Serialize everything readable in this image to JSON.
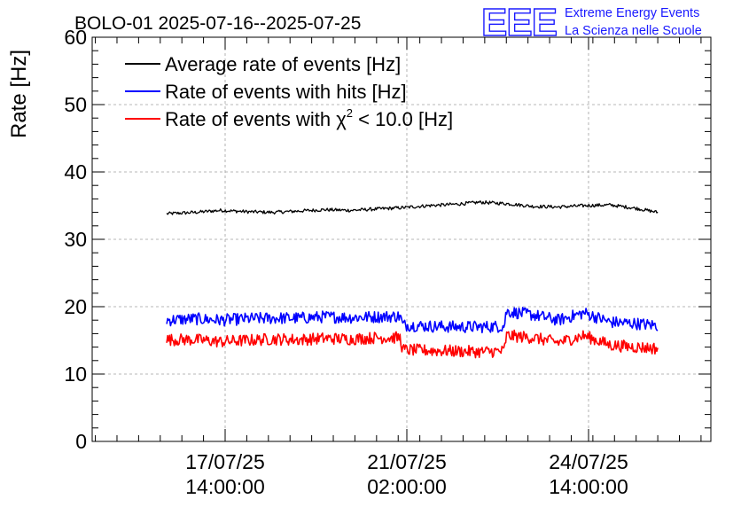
{
  "chart_data": {
    "type": "line",
    "title": "BOLO-01 2025-07-16--2025-07-25",
    "xlabel": "",
    "ylabel": "Rate [Hz]",
    "ylim": [
      0,
      60
    ],
    "yticks": [
      0,
      10,
      20,
      30,
      40,
      50,
      60
    ],
    "xtick_labels": [
      {
        "date": "17/07/25",
        "time": "14:00:00"
      },
      {
        "date": "21/07/25",
        "time": "02:00:00"
      },
      {
        "date": "24/07/25",
        "time": "14:00:00"
      }
    ],
    "grid": true,
    "legend_position": "top-left",
    "legend": [
      {
        "label": "Average rate of events [Hz]",
        "color": "#000000"
      },
      {
        "label": "Rate of events with hits [Hz]",
        "color": "#0000ff"
      },
      {
        "label_prefix": "Rate of events with ",
        "label_symbol": "χ",
        "label_sup": "2",
        "label_suffix": " < 10.0 [Hz]",
        "color": "#ff0000"
      }
    ],
    "series": [
      {
        "color": "#000000",
        "noise": 0.25,
        "x": [
          "2025-07-16 11:00",
          "2025-07-17 00:00",
          "2025-07-17 12:00",
          "2025-07-18 00:00",
          "2025-07-18 12:00",
          "2025-07-19 00:00",
          "2025-07-19 12:00",
          "2025-07-20 00:00",
          "2025-07-20 12:00",
          "2025-07-21 00:00",
          "2025-07-21 12:00",
          "2025-07-22 00:00",
          "2025-07-22 12:00",
          "2025-07-23 00:00",
          "2025-07-23 12:00",
          "2025-07-24 00:00",
          "2025-07-24 12:00",
          "2025-07-25 00:00",
          "2025-07-25 12:00",
          "2025-07-25 22:00"
        ],
        "values": [
          33.8,
          34.0,
          34.3,
          34.1,
          34.0,
          34.2,
          34.4,
          34.3,
          34.5,
          34.7,
          35.0,
          35.2,
          35.5,
          35.3,
          34.9,
          34.8,
          35.0,
          35.1,
          34.6,
          34.0
        ]
      },
      {
        "color": "#0000ff",
        "noise": 0.9,
        "x": [
          "2025-07-16 11:00",
          "2025-07-17 00:00",
          "2025-07-17 12:00",
          "2025-07-18 00:00",
          "2025-07-18 12:00",
          "2025-07-19 00:00",
          "2025-07-19 12:00",
          "2025-07-20 00:00",
          "2025-07-20 12:00",
          "2025-07-20 23:00",
          "2025-07-21 00:00",
          "2025-07-21 12:00",
          "2025-07-22 00:00",
          "2025-07-22 12:00",
          "2025-07-22 23:00",
          "2025-07-23 00:00",
          "2025-07-23 12:00",
          "2025-07-24 00:00",
          "2025-07-24 12:00",
          "2025-07-25 00:00",
          "2025-07-25 12:00",
          "2025-07-25 22:00"
        ],
        "values": [
          18.0,
          18.2,
          18.0,
          18.2,
          18.3,
          18.3,
          18.5,
          18.4,
          18.5,
          18.6,
          17.3,
          17.1,
          17.0,
          17.0,
          17.1,
          19.3,
          18.8,
          18.0,
          19.1,
          17.7,
          17.5,
          17.2
        ]
      },
      {
        "color": "#ff0000",
        "noise": 0.9,
        "x": [
          "2025-07-16 11:00",
          "2025-07-17 00:00",
          "2025-07-17 12:00",
          "2025-07-18 00:00",
          "2025-07-18 12:00",
          "2025-07-19 00:00",
          "2025-07-19 12:00",
          "2025-07-20 00:00",
          "2025-07-20 12:00",
          "2025-07-20 23:00",
          "2025-07-21 00:00",
          "2025-07-21 12:00",
          "2025-07-22 00:00",
          "2025-07-22 12:00",
          "2025-07-22 23:00",
          "2025-07-23 00:00",
          "2025-07-23 12:00",
          "2025-07-24 00:00",
          "2025-07-24 12:00",
          "2025-07-25 00:00",
          "2025-07-25 12:00",
          "2025-07-25 22:00"
        ],
        "values": [
          15.1,
          15.1,
          14.8,
          15.0,
          15.2,
          15.1,
          15.3,
          15.2,
          15.4,
          15.4,
          13.6,
          13.5,
          13.4,
          13.3,
          13.4,
          15.7,
          15.4,
          14.7,
          15.7,
          14.3,
          14.0,
          13.8
        ]
      }
    ]
  },
  "logo": {
    "text": "EEE",
    "line1": "Extreme Energy Events",
    "line2": "La Scienza nelle Scuole",
    "color": "#1a1aff"
  }
}
